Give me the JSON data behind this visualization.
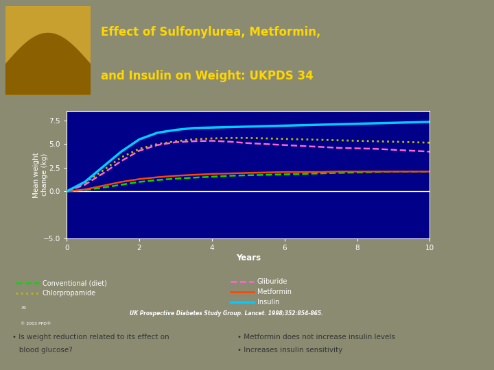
{
  "title_line1": "Effect of Sulfonylurea, Metformin,",
  "title_line2": "and Insulin on Weight: UKPDS 34",
  "title_color": "#FFD700",
  "header_bg": "#1a1aaa",
  "chart_bg": "#000099",
  "outer_bg": "#8B8B72",
  "slide_bg": "#E8E8E8",
  "xlabel": "Years",
  "ylabel": "Mean weight\nchange (kg)",
  "xlim": [
    0,
    10
  ],
  "ylim": [
    -5.0,
    8.5
  ],
  "xticks": [
    0,
    2,
    4,
    6,
    8,
    10
  ],
  "yticks": [
    -5.0,
    0.0,
    2.5,
    5.0,
    7.5
  ],
  "citation": "UK Prospective Diabetes Study Group. Lancet. 1998;352:854-865.",
  "bullet_left1": "Is weight reduction related to its effect on",
  "bullet_left2": "blood glucose?",
  "bullet_right1": "Metformin does not increase insulin levels",
  "bullet_right2": "Increases insulin sensitivity",
  "series": {
    "conventional": {
      "label": "Conventional (diet)",
      "color": "#00DD00",
      "linestyle": "dashed",
      "linewidth": 1.8,
      "x": [
        0,
        0.5,
        1,
        1.5,
        2,
        2.5,
        3,
        3.5,
        4,
        4.5,
        5,
        5.5,
        6,
        6.5,
        7,
        7.5,
        8,
        8.5,
        9,
        9.5,
        10
      ],
      "y": [
        0,
        0.15,
        0.4,
        0.7,
        1.0,
        1.2,
        1.35,
        1.45,
        1.55,
        1.65,
        1.7,
        1.75,
        1.8,
        1.85,
        1.9,
        1.95,
        2.0,
        2.05,
        2.1,
        2.1,
        2.1
      ]
    },
    "chlorpropamide": {
      "label": "Chlorpropamide",
      "color": "#BBBB00",
      "linestyle": "dotted",
      "linewidth": 2.0,
      "x": [
        0,
        0.5,
        1,
        1.5,
        2,
        2.5,
        3,
        3.5,
        4,
        4.5,
        5,
        5.5,
        6,
        6.5,
        7,
        7.5,
        8,
        8.5,
        9,
        9.5,
        10
      ],
      "y": [
        0,
        0.9,
        2.2,
        3.6,
        4.5,
        5.0,
        5.3,
        5.5,
        5.6,
        5.65,
        5.65,
        5.6,
        5.55,
        5.5,
        5.45,
        5.4,
        5.35,
        5.3,
        5.25,
        5.2,
        5.15
      ]
    },
    "gliburide": {
      "label": "Gliburide",
      "color": "#FF66CC",
      "linestyle": "dashed",
      "linewidth": 1.8,
      "x": [
        0,
        0.5,
        1,
        1.5,
        2,
        2.5,
        3,
        3.5,
        4,
        4.5,
        5,
        5.5,
        6,
        6.5,
        7,
        7.5,
        8,
        8.5,
        9,
        9.5,
        10
      ],
      "y": [
        0,
        0.7,
        1.9,
        3.2,
        4.3,
        4.9,
        5.2,
        5.3,
        5.35,
        5.25,
        5.1,
        5.0,
        4.9,
        4.8,
        4.7,
        4.6,
        4.55,
        4.5,
        4.4,
        4.3,
        4.2
      ]
    },
    "metformin": {
      "label": "Metformin",
      "color": "#FF4500",
      "linestyle": "solid",
      "linewidth": 1.8,
      "x": [
        0,
        0.5,
        1,
        1.5,
        2,
        2.5,
        3,
        3.5,
        4,
        4.5,
        5,
        5.5,
        6,
        6.5,
        7,
        7.5,
        8,
        8.5,
        9,
        9.5,
        10
      ],
      "y": [
        0,
        0.2,
        0.6,
        1.0,
        1.3,
        1.5,
        1.65,
        1.75,
        1.85,
        1.9,
        1.95,
        2.0,
        2.05,
        2.05,
        2.05,
        2.1,
        2.1,
        2.1,
        2.1,
        2.1,
        2.1
      ]
    },
    "insulin": {
      "label": "Insulin",
      "color": "#00CCFF",
      "linestyle": "solid",
      "linewidth": 2.5,
      "x": [
        0,
        0.5,
        1,
        1.5,
        2,
        2.5,
        3,
        3.5,
        4,
        4.5,
        5,
        5.5,
        6,
        6.5,
        7,
        7.5,
        8,
        8.5,
        9,
        9.5,
        10
      ],
      "y": [
        0,
        1.0,
        2.6,
        4.2,
        5.5,
        6.2,
        6.5,
        6.7,
        6.75,
        6.8,
        6.85,
        6.9,
        6.95,
        7.0,
        7.05,
        7.1,
        7.15,
        7.2,
        7.25,
        7.3,
        7.35
      ]
    }
  }
}
